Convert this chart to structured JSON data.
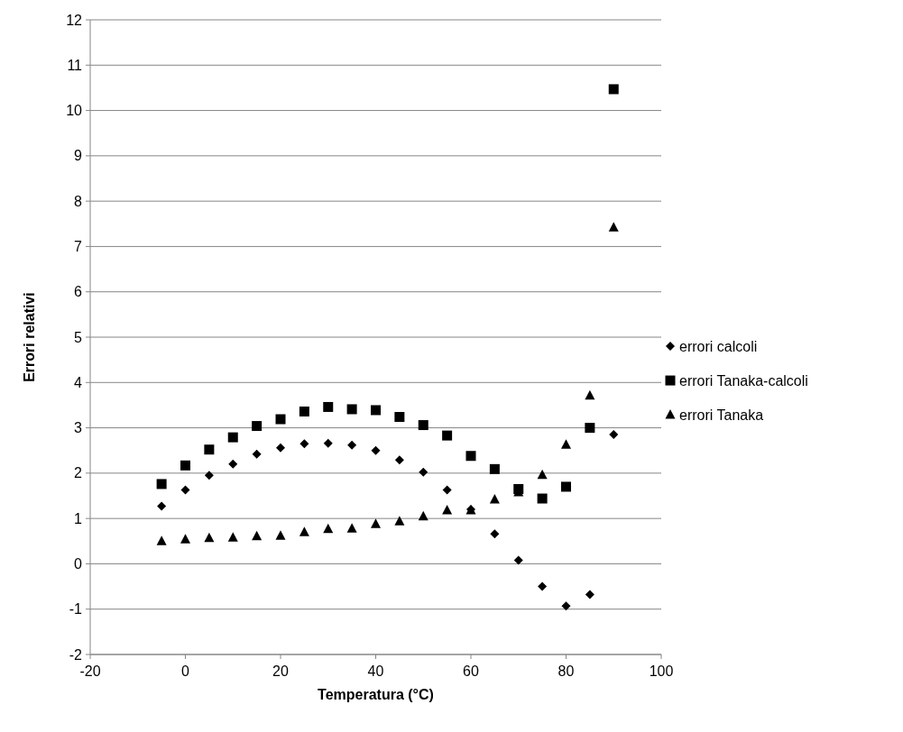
{
  "chart_data": {
    "type": "scatter",
    "xlabel": "Temperatura (°C)",
    "ylabel": "Errori relativi",
    "x": [
      -5,
      0,
      5,
      10,
      15,
      20,
      25,
      30,
      35,
      40,
      45,
      50,
      55,
      60,
      65,
      70,
      75,
      80,
      85,
      90
    ],
    "series": [
      {
        "name": "errori calcoli",
        "color": "#000000",
        "marker": "diamond",
        "values": [
          1.27,
          1.63,
          1.95,
          2.2,
          2.42,
          2.56,
          2.65,
          2.66,
          2.62,
          2.5,
          2.29,
          2.02,
          1.63,
          1.2,
          0.66,
          0.08,
          -0.5,
          -0.93,
          -0.68,
          2.85
        ]
      },
      {
        "name": "errori Tanaka-calcoli",
        "color": "#000000",
        "marker": "square",
        "values": [
          1.76,
          2.17,
          2.52,
          2.79,
          3.04,
          3.19,
          3.36,
          3.46,
          3.41,
          3.39,
          3.24,
          3.06,
          2.83,
          2.38,
          2.09,
          1.65,
          1.44,
          1.7,
          3.0,
          10.47
        ]
      },
      {
        "name": "errori Tanaka",
        "color": "#000000",
        "marker": "triangle",
        "values": [
          0.5,
          0.54,
          0.57,
          0.58,
          0.61,
          0.62,
          0.7,
          0.77,
          0.78,
          0.88,
          0.94,
          1.05,
          1.18,
          1.18,
          1.42,
          1.58,
          1.96,
          2.63,
          3.71,
          7.42
        ]
      }
    ],
    "xlim": [
      -20,
      100
    ],
    "xticks": [
      -20,
      0,
      20,
      40,
      60,
      80,
      100
    ],
    "ylim": [
      -2,
      12
    ],
    "yticks": [
      -2,
      -1,
      0,
      1,
      2,
      3,
      4,
      5,
      6,
      7,
      8,
      9,
      10,
      11,
      12
    ],
    "grid": "y",
    "legend": "right"
  }
}
